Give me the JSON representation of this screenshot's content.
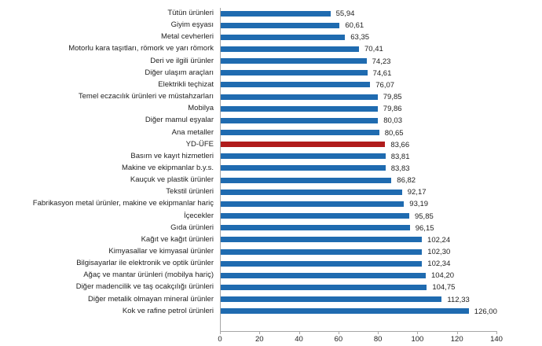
{
  "colors": {
    "bar": "#1f6bb0",
    "highlight": "#b01c1c",
    "axis": "#a6a6a6",
    "text": "#222222"
  },
  "chart_data": {
    "type": "bar",
    "orientation": "horizontal",
    "title": "",
    "xlabel": "",
    "ylabel": "",
    "xlim": [
      0,
      140
    ],
    "xticks": [
      "0",
      "20",
      "40",
      "60",
      "80",
      "100",
      "120",
      "140"
    ],
    "grid": false,
    "legend": null,
    "highlighted_category": "YD-ÜFE",
    "categories": [
      "Tütün ürünleri",
      "Giyim eşyası",
      "Metal cevherleri",
      "Motorlu kara taşıtları, römork ve yarı römork",
      "Deri ve ilgili ürünler",
      "Diğer ulaşım araçları",
      "Elektrikli teçhizat",
      "Temel eczacılık ürünleri ve müstahzarları",
      "Mobilya",
      "Diğer mamul eşyalar",
      "Ana metaller",
      "YD-ÜFE",
      "Basım ve kayıt hizmetleri",
      "Makine ve ekipmanlar b.y.s.",
      "Kauçuk ve plastik ürünler",
      "Tekstil ürünleri",
      "Fabrikasyon metal ürünler, makine ve ekipmanlar hariç",
      "İçecekler",
      "Gıda ürünleri",
      "Kağıt ve kağıt ürünleri",
      "Kimyasallar ve kimyasal ürünler",
      "Bilgisayarlar ile elektronik ve optik ürünler",
      "Ağaç ve mantar ürünleri (mobilya hariç)",
      "Diğer madencilik ve taş ocakçılığı ürünleri",
      "Diğer metalik olmayan mineral ürünler",
      "Kok ve rafine petrol ürünleri"
    ],
    "values": [
      55.94,
      60.61,
      63.35,
      70.41,
      74.23,
      74.61,
      76.07,
      79.85,
      79.86,
      80.03,
      80.65,
      83.66,
      83.81,
      83.83,
      86.82,
      92.17,
      93.19,
      95.85,
      96.15,
      102.24,
      102.3,
      102.34,
      104.2,
      104.75,
      112.33,
      126.0
    ],
    "value_labels": [
      "55,94",
      "60,61",
      "63,35",
      "70,41",
      "74,23",
      "74,61",
      "76,07",
      "79,85",
      "79,86",
      "80,03",
      "80,65",
      "83,66",
      "83,81",
      "83,83",
      "86,82",
      "92,17",
      "93,19",
      "95,85",
      "96,15",
      "102,24",
      "102,30",
      "102,34",
      "104,20",
      "104,75",
      "112,33",
      "126,00"
    ]
  }
}
